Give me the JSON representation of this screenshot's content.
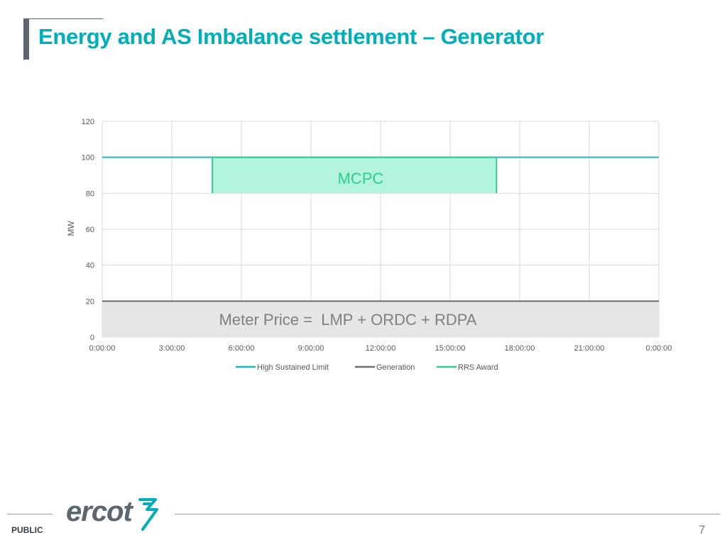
{
  "slide": {
    "title": "Energy and AS Imbalance settlement – Generator",
    "footer_label": "PUBLIC",
    "page_number": "7",
    "logo_text": "ercot"
  },
  "chart_data": {
    "type": "line",
    "ylabel": "MW",
    "ylim": [
      0,
      120
    ],
    "yticks": [
      "0",
      "20",
      "40",
      "60",
      "80",
      "100",
      "120"
    ],
    "xticks": [
      "0:00:00",
      "3:00:00",
      "6:00:00",
      "9:00:00",
      "12:00:00",
      "15:00:00",
      "18:00:00",
      "21:00:00",
      "0:00:00"
    ],
    "xlim_hours": [
      0,
      24
    ],
    "grid": true,
    "legend_position": "bottom",
    "series": [
      {
        "name": "High Sustained Limit",
        "color": "#1fb5c7",
        "x_hours": [
          0,
          24
        ],
        "y": [
          100,
          100
        ]
      },
      {
        "name": "Generation",
        "color": "#6d6d6d",
        "x_hours": [
          0,
          24
        ],
        "y": [
          20,
          20
        ]
      },
      {
        "name": "RRS Award",
        "color": "#2ecc8f",
        "x_hours": [
          4.75,
          4.75,
          17,
          17
        ],
        "y": [
          80,
          100,
          100,
          80
        ]
      }
    ],
    "annotations": {
      "mcpc": "MCPC",
      "meter_price": "Meter Price =  LMP + ORDC + RDPA"
    },
    "fills": {
      "rrs_band": {
        "color": "#b3f5dc",
        "x_hours": [
          4.75,
          17
        ],
        "y": [
          80,
          100
        ]
      },
      "generation_band": {
        "color": "#e6e6e6",
        "x_hours": [
          0,
          24
        ],
        "y": [
          0,
          20
        ]
      }
    }
  }
}
